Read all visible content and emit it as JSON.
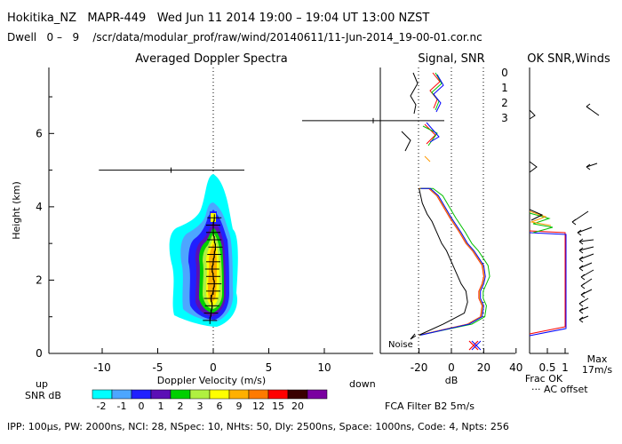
{
  "header": {
    "line1": "Hokitika_NZ   MAPR-449   Wed Jun 11 2014 19:00 – 19:04 UT 13:00 NZST",
    "line2": "Dwell   0 –   9    /scr/data/modular_prof/raw/wind/20140611/11-Jun-2014_19-00-01.cor.nc"
  },
  "footer": {
    "params": "IPP: 100μs,  PW: 2000ns,  NCI:  28,  NSpec: 10,  NHts: 50,  Dly: 2500ns,  Space: 1000ns,  Code: 4,  Npts: 256",
    "filter": "FCA Filter B2   5m/s",
    "up": "up",
    "down": "down"
  },
  "colorbar": {
    "label": "SNR dB",
    "ticks": [
      "-2",
      "-1",
      "0",
      "1",
      "2",
      "3",
      "6",
      "9",
      "12",
      "15",
      "20"
    ],
    "colors": [
      "#00ffff",
      "#4da6ff",
      "#2020ff",
      "#5b0fb5",
      "#00d000",
      "#b0f040",
      "#ffff00",
      "#ffb000",
      "#ff7a00",
      "#ff0000",
      "#3a0000",
      "#7a00a0"
    ]
  },
  "chart_data": [
    {
      "type": "heatmap",
      "title": "Averaged Doppler Spectra",
      "xlabel": "Doppler Velocity (m/s)",
      "ylabel": "Height (km)",
      "xticks": [
        "-10",
        "-5",
        "0",
        "5",
        "10"
      ],
      "yticks": [
        "0",
        "2",
        "4",
        "6"
      ],
      "xlim": [
        -15,
        15
      ],
      "ylim": [
        0,
        7.8
      ],
      "mean_velocity_profile": {
        "height": [
          0.9,
          1.1,
          1.3,
          1.5,
          1.7,
          1.9,
          2.1,
          2.3,
          2.5,
          2.7,
          2.9,
          3.1,
          3.3,
          3.5,
          3.7
        ],
        "velocity": [
          -0.3,
          -0.2,
          -0.1,
          -0.2,
          0.0,
          0.1,
          0.0,
          -0.1,
          0.0,
          0.1,
          0.2,
          0.1,
          0.0,
          0.0,
          0.1
        ]
      },
      "error_bar_points": [
        {
          "height": 5.0,
          "velocity": -3.8,
          "xmin": -10.3,
          "xmax": 2.8
        }
      ]
    },
    {
      "type": "line",
      "title": "Signal, SNR",
      "xlabel": "dB",
      "xticks": [
        "-20",
        "0",
        "20",
        "40"
      ],
      "xlim": [
        -30,
        40
      ],
      "annotation": "Noise",
      "series": [
        {
          "name": "0",
          "color": "#ff0000",
          "x": [
            -20,
            -14,
            -9,
            -5,
            -1,
            5,
            9,
            13,
            16,
            19,
            20,
            19,
            17,
            17,
            19,
            18,
            10,
            -20
          ],
          "y": [
            4.5,
            4.5,
            4.3,
            4.0,
            3.7,
            3.3,
            3.0,
            2.8,
            2.6,
            2.4,
            2.1,
            1.9,
            1.7,
            1.5,
            1.3,
            1.0,
            0.8,
            0.5
          ]
        },
        {
          "name": "1",
          "color": "#ff9900",
          "x": [
            -20,
            -14,
            -9,
            -5,
            -1,
            5,
            9,
            13,
            16,
            19,
            20,
            19,
            17,
            17,
            19,
            18,
            10,
            -20
          ],
          "y": [
            4.5,
            4.5,
            4.3,
            4.0,
            3.7,
            3.3,
            3.0,
            2.8,
            2.6,
            2.4,
            2.1,
            1.9,
            1.7,
            1.5,
            1.3,
            1.0,
            0.8,
            0.5
          ]
        },
        {
          "name": "2",
          "color": "#00c000",
          "x": [
            -20,
            -12,
            -6,
            -2,
            2,
            8,
            12,
            16,
            19,
            22,
            23,
            21,
            19,
            19,
            21,
            20,
            12,
            -20
          ],
          "y": [
            4.5,
            4.5,
            4.3,
            4.0,
            3.7,
            3.3,
            3.0,
            2.8,
            2.6,
            2.4,
            2.1,
            1.9,
            1.7,
            1.5,
            1.3,
            1.0,
            0.8,
            0.5
          ]
        },
        {
          "name": "3",
          "color": "#0000ff",
          "x": [
            -20,
            -14,
            -9,
            -5,
            -1,
            5,
            9,
            13,
            16,
            19,
            20,
            19,
            17,
            17,
            19,
            18,
            10,
            -20
          ],
          "y": [
            4.5,
            4.5,
            4.3,
            4.0,
            3.7,
            3.3,
            3.0,
            2.8,
            2.6,
            2.4,
            2.1,
            1.9,
            1.7,
            1.5,
            1.3,
            1.0,
            0.8,
            0.5
          ]
        }
      ]
    },
    {
      "type": "line",
      "title": "OK SNR,Winds",
      "xlabel": "Frac OK",
      "xticks": [
        "0.5",
        "1"
      ],
      "xlim": [
        0,
        1.2
      ],
      "legend_note": "··· AC offset",
      "wind_scale": [
        "Max",
        "17m/s"
      ]
    }
  ]
}
